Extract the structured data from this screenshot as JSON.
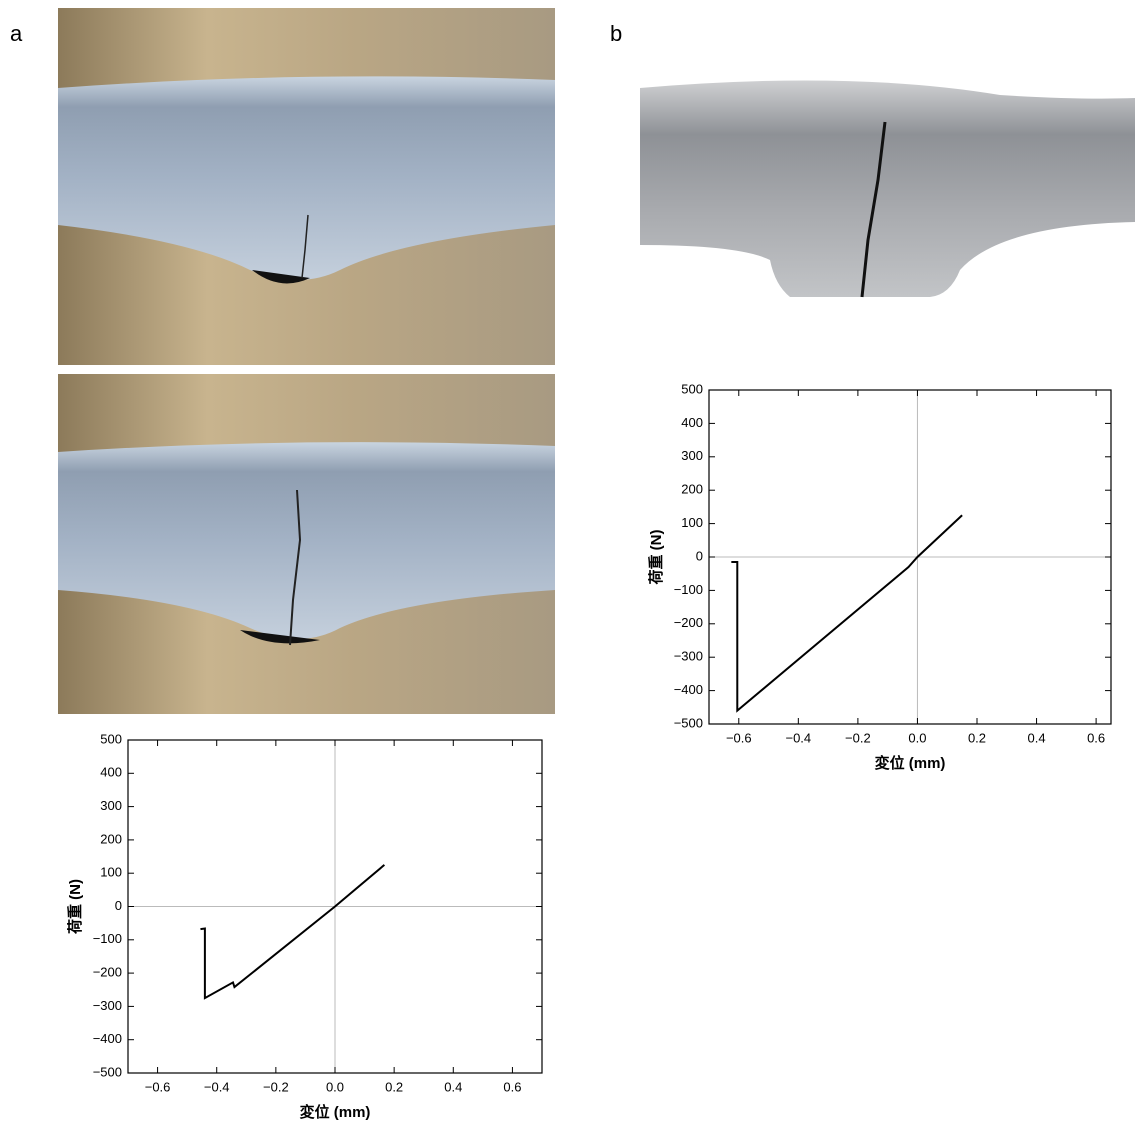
{
  "panel_labels": [
    "a",
    "b"
  ],
  "chart_data": [
    {
      "type": "line",
      "xlabel": "変位 (mm)",
      "ylabel": "荷重 (N)",
      "x": [
        -0.455,
        -0.44,
        -0.44,
        -0.345,
        -0.34,
        0,
        0.167
      ],
      "values": [
        -68,
        -66,
        -275,
        -228,
        -242,
        0,
        125
      ],
      "color": "#000000",
      "zero_lines": true,
      "xlim": [
        -0.7,
        0.7
      ],
      "ylim": [
        -500,
        500
      ],
      "xticks": [
        {
          "value": -0.6,
          "label": "−0.6"
        },
        {
          "value": -0.4,
          "label": "−0.4"
        },
        {
          "value": -0.2,
          "label": "−0.2"
        },
        {
          "value": 0,
          "label": "0.0"
        },
        0.2,
        0.4,
        0.6
      ],
      "yticks": [
        {
          "value": -500,
          "label": "−500"
        },
        {
          "value": -400,
          "label": "−400"
        },
        {
          "value": -300,
          "label": "−300"
        },
        {
          "value": -200,
          "label": "−200"
        },
        {
          "value": -100,
          "label": "−100"
        },
        0,
        100,
        200,
        300,
        400,
        500
      ]
    },
    {
      "type": "line",
      "xlabel": "変位 (mm)",
      "ylabel": "荷重 (N)",
      "x": [
        -0.625,
        -0.605,
        -0.605,
        -0.03,
        0,
        0.15
      ],
      "values": [
        -15,
        -15,
        -460,
        -30,
        0,
        125
      ],
      "color": "#000000",
      "zero_lines": true,
      "xlim": [
        -0.7,
        0.65
      ],
      "ylim": [
        -500,
        500
      ],
      "xticks": [
        {
          "value": -0.6,
          "label": "−0.6"
        },
        {
          "value": -0.4,
          "label": "−0.4"
        },
        {
          "value": -0.2,
          "label": "−0.2"
        },
        {
          "value": 0,
          "label": "0.0"
        },
        0.2,
        0.4,
        0.6
      ],
      "yticks": [
        {
          "value": -500,
          "label": "−500"
        },
        {
          "value": -400,
          "label": "−400"
        },
        {
          "value": -300,
          "label": "−300"
        },
        {
          "value": -200,
          "label": "−200"
        },
        {
          "value": -100,
          "label": "−100"
        },
        0,
        100,
        200,
        300,
        400,
        500
      ]
    }
  ]
}
